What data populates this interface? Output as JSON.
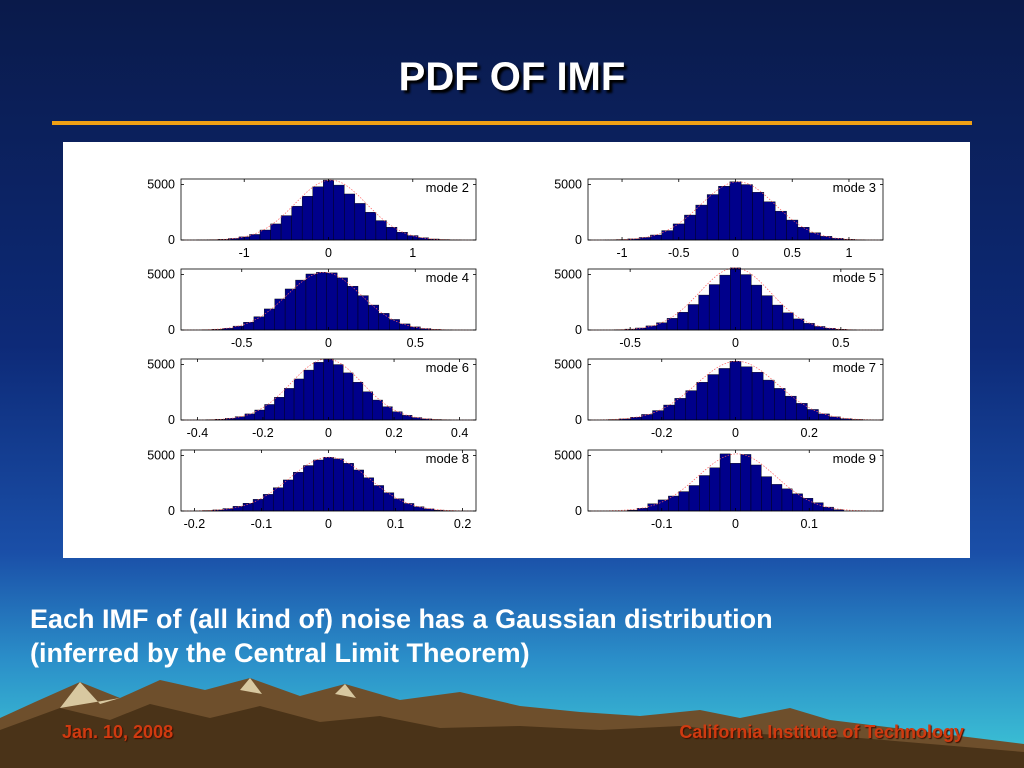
{
  "slide": {
    "title": "PDF OF IMF",
    "caption_line1": "Each IMF of (all kind of) noise has a Gaussian distribution",
    "caption_line2": "(inferred by the Central Limit Theorem)",
    "footer_left": "Jan. 10, 2008",
    "footer_right": "California Institute of Technology"
  },
  "colors": {
    "bar_fill": "#00008b",
    "bar_edge": "#000000",
    "fit_curve": "#ff6060",
    "title_rule": "#f0a014",
    "footer_text": "#d03a10"
  },
  "chart_data": [
    {
      "type": "bar",
      "label": "mode 2",
      "xlim": [
        -1.75,
        1.75
      ],
      "ylim": [
        0,
        5500
      ],
      "xticks": [
        -1,
        0,
        1
      ],
      "xticklabels": [
        "-1",
        "0",
        "1"
      ],
      "yticks": [
        0,
        5000
      ],
      "yticklabels": [
        "0",
        "5000"
      ],
      "x": [
        -1.5,
        -1.375,
        -1.25,
        -1.125,
        -1.0,
        -0.875,
        -0.75,
        -0.625,
        -0.5,
        -0.375,
        -0.25,
        -0.125,
        0,
        0.125,
        0.25,
        0.375,
        0.5,
        0.625,
        0.75,
        0.875,
        1.0,
        1.125,
        1.25,
        1.375,
        1.5
      ],
      "values": [
        10,
        30,
        60,
        140,
        280,
        500,
        900,
        1450,
        2200,
        3050,
        3950,
        4800,
        5400,
        4950,
        4150,
        3300,
        2500,
        1750,
        1150,
        700,
        400,
        200,
        90,
        40,
        15
      ]
    },
    {
      "type": "bar",
      "label": "mode 3",
      "xlim": [
        -1.3,
        1.3
      ],
      "ylim": [
        0,
        5500
      ],
      "xticks": [
        -1,
        -0.5,
        0,
        0.5,
        1
      ],
      "xticklabels": [
        "-1",
        "-0.5",
        "0",
        "0.5",
        "1"
      ],
      "yticks": [
        0,
        5000
      ],
      "yticklabels": [
        "0",
        "5000"
      ],
      "x": [
        -1.1,
        -1.0,
        -0.9,
        -0.8,
        -0.7,
        -0.6,
        -0.5,
        -0.4,
        -0.3,
        -0.2,
        -0.1,
        0,
        0.1,
        0.2,
        0.3,
        0.4,
        0.5,
        0.6,
        0.7,
        0.8,
        0.9,
        1.0,
        1.1
      ],
      "values": [
        15,
        40,
        100,
        230,
        450,
        850,
        1450,
        2250,
        3150,
        4100,
        4850,
        5250,
        5000,
        4300,
        3450,
        2600,
        1800,
        1150,
        650,
        330,
        150,
        60,
        20
      ]
    },
    {
      "type": "bar",
      "label": "mode 4",
      "xlim": [
        -0.85,
        0.85
      ],
      "ylim": [
        0,
        5500
      ],
      "xticks": [
        -0.5,
        0,
        0.5
      ],
      "xticklabels": [
        "-0.5",
        "0",
        "0.5"
      ],
      "yticks": [
        0,
        5000
      ],
      "yticklabels": [
        "0",
        "5000"
      ],
      "x": [
        -0.7,
        -0.64,
        -0.58,
        -0.52,
        -0.46,
        -0.4,
        -0.34,
        -0.28,
        -0.22,
        -0.16,
        -0.1,
        -0.04,
        0.02,
        0.08,
        0.14,
        0.2,
        0.26,
        0.32,
        0.38,
        0.44,
        0.5,
        0.56,
        0.62,
        0.68
      ],
      "values": [
        20,
        60,
        150,
        350,
        700,
        1200,
        1900,
        2800,
        3700,
        4500,
        5050,
        5200,
        5150,
        4700,
        3950,
        3100,
        2250,
        1500,
        950,
        550,
        280,
        130,
        50,
        15
      ]
    },
    {
      "type": "bar",
      "label": "mode 5",
      "xlim": [
        -0.7,
        0.7
      ],
      "ylim": [
        0,
        5500
      ],
      "xticks": [
        -0.5,
        0,
        0.5
      ],
      "xticklabels": [
        "-0.5",
        "0",
        "0.5"
      ],
      "yticks": [
        0,
        5000
      ],
      "yticklabels": [
        "0",
        "5000"
      ],
      "x": [
        -0.55,
        -0.5,
        -0.45,
        -0.4,
        -0.35,
        -0.3,
        -0.25,
        -0.2,
        -0.15,
        -0.1,
        -0.05,
        0,
        0.05,
        0.1,
        0.15,
        0.2,
        0.25,
        0.3,
        0.35,
        0.4,
        0.45,
        0.5,
        0.55
      ],
      "values": [
        30,
        80,
        180,
        370,
        650,
        1050,
        1600,
        2300,
        3150,
        4100,
        4950,
        5600,
        5000,
        4050,
        3100,
        2250,
        1550,
        1000,
        600,
        320,
        160,
        70,
        25
      ]
    },
    {
      "type": "bar",
      "label": "mode 6",
      "xlim": [
        -0.45,
        0.45
      ],
      "ylim": [
        0,
        5500
      ],
      "xticks": [
        -0.4,
        -0.2,
        0,
        0.2,
        0.4
      ],
      "xticklabels": [
        "-0.4",
        "-0.2",
        "0",
        "0.2",
        "0.4"
      ],
      "yticks": [
        0,
        5000
      ],
      "yticklabels": [
        "0",
        "5000"
      ],
      "x": [
        -0.36,
        -0.33,
        -0.3,
        -0.27,
        -0.24,
        -0.21,
        -0.18,
        -0.15,
        -0.12,
        -0.09,
        -0.06,
        -0.03,
        0,
        0.03,
        0.06,
        0.09,
        0.12,
        0.15,
        0.18,
        0.21,
        0.24,
        0.27,
        0.3,
        0.33,
        0.36
      ],
      "values": [
        30,
        70,
        150,
        300,
        550,
        900,
        1400,
        2050,
        2850,
        3700,
        4500,
        5200,
        5500,
        5000,
        4250,
        3400,
        2550,
        1800,
        1200,
        750,
        420,
        220,
        100,
        45,
        20
      ]
    },
    {
      "type": "bar",
      "label": "mode 7",
      "xlim": [
        -0.4,
        0.4
      ],
      "ylim": [
        0,
        5500
      ],
      "xticks": [
        -0.2,
        0,
        0.2
      ],
      "xticklabels": [
        "-0.2",
        "0",
        "0.2"
      ],
      "yticks": [
        0,
        5000
      ],
      "yticklabels": [
        "0",
        "5000"
      ],
      "x": [
        -0.33,
        -0.3,
        -0.27,
        -0.24,
        -0.21,
        -0.18,
        -0.15,
        -0.12,
        -0.09,
        -0.06,
        -0.03,
        0,
        0.03,
        0.06,
        0.09,
        0.12,
        0.15,
        0.18,
        0.21,
        0.24,
        0.27,
        0.3,
        0.33
      ],
      "values": [
        40,
        100,
        250,
        500,
        850,
        1350,
        1950,
        2650,
        3400,
        4100,
        4650,
        5300,
        4800,
        4300,
        3600,
        2850,
        2150,
        1500,
        950,
        550,
        280,
        120,
        50
      ]
    },
    {
      "type": "bar",
      "label": "mode 8",
      "xlim": [
        -0.22,
        0.22
      ],
      "ylim": [
        0,
        5500
      ],
      "xticks": [
        -0.2,
        -0.1,
        0,
        0.1,
        0.2
      ],
      "xticklabels": [
        "-0.2",
        "-0.1",
        "0",
        "0.1",
        "0.2"
      ],
      "yticks": [
        0,
        5000
      ],
      "yticklabels": [
        "0",
        "5000"
      ],
      "x": [
        -0.18,
        -0.165,
        -0.15,
        -0.135,
        -0.12,
        -0.105,
        -0.09,
        -0.075,
        -0.06,
        -0.045,
        -0.03,
        -0.015,
        0,
        0.015,
        0.03,
        0.045,
        0.06,
        0.075,
        0.09,
        0.105,
        0.12,
        0.135,
        0.15,
        0.165,
        0.18
      ],
      "values": [
        40,
        100,
        220,
        420,
        700,
        1050,
        1500,
        2100,
        2800,
        3500,
        4100,
        4600,
        4850,
        4700,
        4300,
        3700,
        3000,
        2300,
        1650,
        1100,
        680,
        380,
        190,
        80,
        30
      ]
    },
    {
      "type": "bar",
      "label": "mode 9",
      "xlim": [
        -0.2,
        0.2
      ],
      "ylim": [
        0,
        5500
      ],
      "xticks": [
        -0.1,
        0,
        0.1
      ],
      "xticklabels": [
        "-0.1",
        "0",
        "0.1"
      ],
      "yticks": [
        0,
        5000
      ],
      "yticklabels": [
        "0",
        "5000"
      ],
      "x": [
        -0.14,
        -0.126,
        -0.112,
        -0.098,
        -0.084,
        -0.07,
        -0.056,
        -0.042,
        -0.028,
        -0.014,
        0,
        0.014,
        0.028,
        0.042,
        0.056,
        0.07,
        0.084,
        0.098,
        0.112,
        0.126,
        0.14
      ],
      "values": [
        80,
        250,
        650,
        1000,
        1350,
        1750,
        2300,
        3200,
        3900,
        5150,
        4300,
        5100,
        4150,
        3100,
        2400,
        2000,
        1550,
        1150,
        750,
        350,
        120
      ]
    }
  ]
}
